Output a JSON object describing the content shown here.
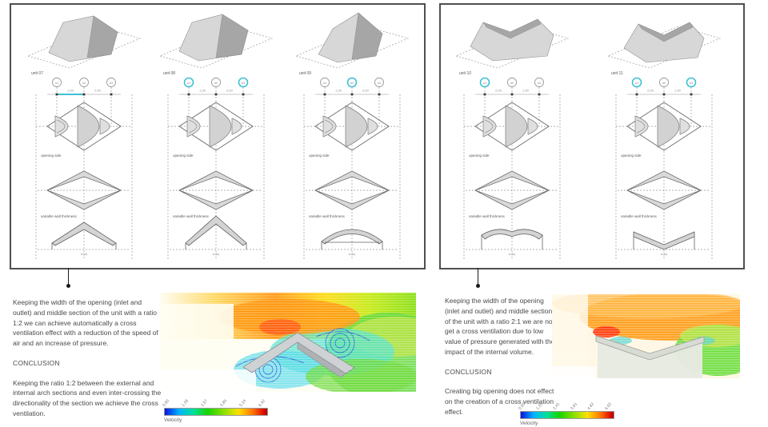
{
  "palette": {
    "accent_cyan": "#3fc1d6",
    "line_gray": "#9a9a9a",
    "ink": "#4a4a4a",
    "fill_gray": "#d6d6d6",
    "panel_border": "#4f4f4f"
  },
  "shared_labels": {
    "opening_side": "opening side",
    "variable_wall": "variable wall thickness",
    "width_mark": "w (w)"
  },
  "panels": [
    {
      "columns": [
        {
          "unit": "unit 07",
          "form": "arch-low",
          "profile": "chevron",
          "dims": [
            "1.00",
            "2.00"
          ],
          "cyan_segment": 0,
          "circles": [
            {
              "label": "w1",
              "highlight": false
            },
            {
              "label": "w2",
              "highlight": false
            },
            {
              "label": "w3",
              "highlight": false
            }
          ]
        },
        {
          "unit": "unit 08",
          "form": "arch-mid",
          "profile": "chevron-steep",
          "dims": [
            "1.00",
            "2.00"
          ],
          "cyan_segment": -1,
          "circles": [
            {
              "label": "w1",
              "highlight": true
            },
            {
              "label": "w2",
              "highlight": false
            },
            {
              "label": "w3",
              "highlight": true
            }
          ]
        },
        {
          "unit": "unit 09",
          "form": "arch-peak",
          "profile": "arch-flat",
          "dims": [
            "1.00",
            "2.00"
          ],
          "cyan_segment": -1,
          "circles": [
            {
              "label": "w1",
              "highlight": false
            },
            {
              "label": "w2",
              "highlight": true
            },
            {
              "label": "w3",
              "highlight": false
            }
          ]
        }
      ]
    },
    {
      "columns": [
        {
          "unit": "unit 10",
          "form": "saddle",
          "profile": "wave",
          "dims": [
            "2.00",
            "1.00"
          ],
          "cyan_segment": -1,
          "circles": [
            {
              "label": "w1",
              "highlight": true
            },
            {
              "label": "w2",
              "highlight": false
            },
            {
              "label": "w3",
              "highlight": false
            }
          ]
        },
        {
          "unit": "unit 11",
          "form": "valley",
          "profile": "vee",
          "dims": [
            "2.00",
            "1.00"
          ],
          "cyan_segment": -1,
          "circles": [
            {
              "label": "w1",
              "highlight": true
            },
            {
              "label": "w2",
              "highlight": false
            },
            {
              "label": "w3",
              "highlight": true
            }
          ]
        }
      ]
    }
  ],
  "notes": {
    "left": {
      "p1": "Keeping the width of the opening (inlet and outlet) and middle section of the unit with a ratio 1:2 we can achieve automatically a cross ventilation effect with a reduction of the speed of air and an increase of pressure.",
      "conclusion_heading": "CONCLUSION",
      "p2": "Keeping the ratio 1:2 between the external and internal arch sections and even inter-crossing the directionality of the section we achieve the cross ventilation."
    },
    "right": {
      "p1": "Keeping the width of the opening (inlet and outlet) and middle section of the unit with a ratio 2:1 we are not get a cross ventilation due to low value of pressure generated with the impact of the internal volume.",
      "conclusion_heading": "CONCLUSION",
      "p2": "Creating big opening does not effect on the creation of a cross ventilation effect."
    }
  },
  "legends": [
    {
      "title": "Velocity",
      "ticks": [
        "0.00",
        "1.28",
        "2.57",
        "3.85",
        "5.14",
        "6.42"
      ]
    },
    {
      "title": "Velocity",
      "ticks": [
        "0.00",
        "1.20",
        "2.41",
        "3.61",
        "4.82",
        "6.02"
      ]
    }
  ]
}
